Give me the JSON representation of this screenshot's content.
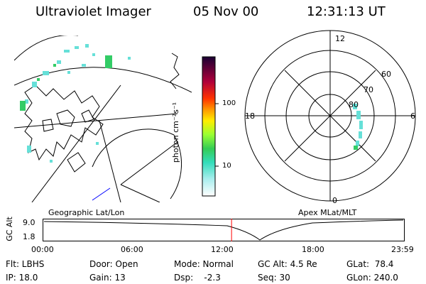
{
  "header": {
    "instrument": "Ultraviolet Imager",
    "date": "05 Nov 00",
    "time": "12:31:13 UT"
  },
  "colorbar": {
    "unit_label": "photon cm⁻²s⁻¹",
    "ticks": [
      "100",
      "10"
    ]
  },
  "polar_plot": {
    "mlt_labels": {
      "top": "12",
      "left": "18",
      "right": "6",
      "bottom": "0"
    },
    "lat_labels": [
      "60",
      "70",
      "80"
    ]
  },
  "orbit_panel": {
    "left_caption": "Geographic Lat/Lon",
    "right_caption": "Apex MLat/MLT",
    "y_axis_title": "GC Alt",
    "y_ticks": [
      "9.0",
      "1.8"
    ],
    "x_ticks": [
      "00:00",
      "06:00",
      "12:00",
      "18:00",
      "23:59"
    ],
    "current_time_fraction": 0.522,
    "marker_color": "#ff0000"
  },
  "info": {
    "row1": {
      "flt": "Flt: LBHS",
      "door": "Door: Open",
      "mode": "Mode: Normal",
      "gcalt": "GC Alt: 4.5 Re",
      "glat": "GLat:  78.4"
    },
    "row2": {
      "ip": "IP: 18.0",
      "gain": "Gain: 13",
      "dsp": "Dsp:    -2.3",
      "seq": "Seq: 30",
      "glon": "GLon: 240.0"
    }
  },
  "colors": {
    "aurora_cyan": "#66e0d8",
    "aurora_green": "#33cc66",
    "orbit_marker": "#ff0000",
    "track_blue": "#0000ff"
  }
}
